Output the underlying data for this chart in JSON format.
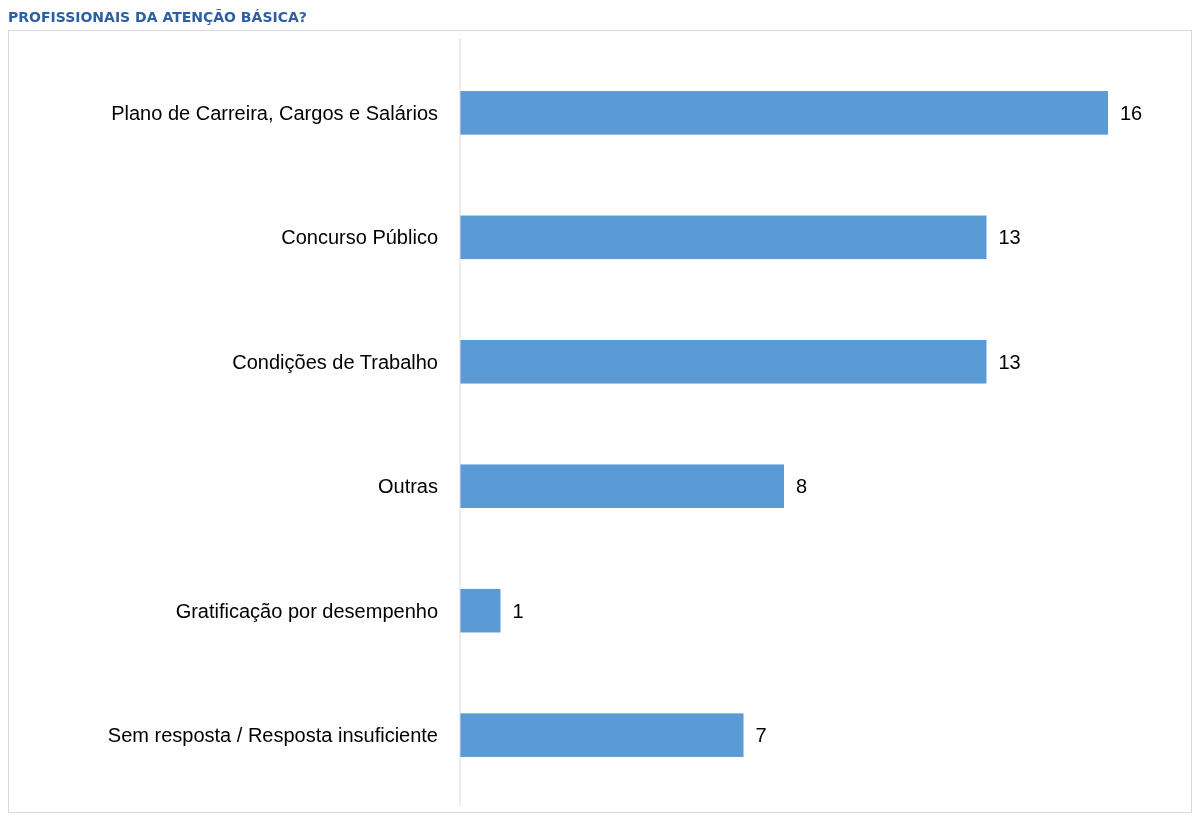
{
  "chart_data": {
    "type": "bar",
    "orientation": "horizontal",
    "title": "PROFISSIONAIS DA ATENÇÃO BÁSICA?",
    "categories": [
      "Plano de Carreira, Cargos e Salários",
      "Concurso Público",
      "Condições de Trabalho",
      "Outras",
      "Gratificação por desempenho",
      "Sem resposta / Resposta insuficiente"
    ],
    "values": [
      16,
      13,
      13,
      8,
      1,
      7
    ],
    "color": "#5b9bd5",
    "data_labels": true
  }
}
